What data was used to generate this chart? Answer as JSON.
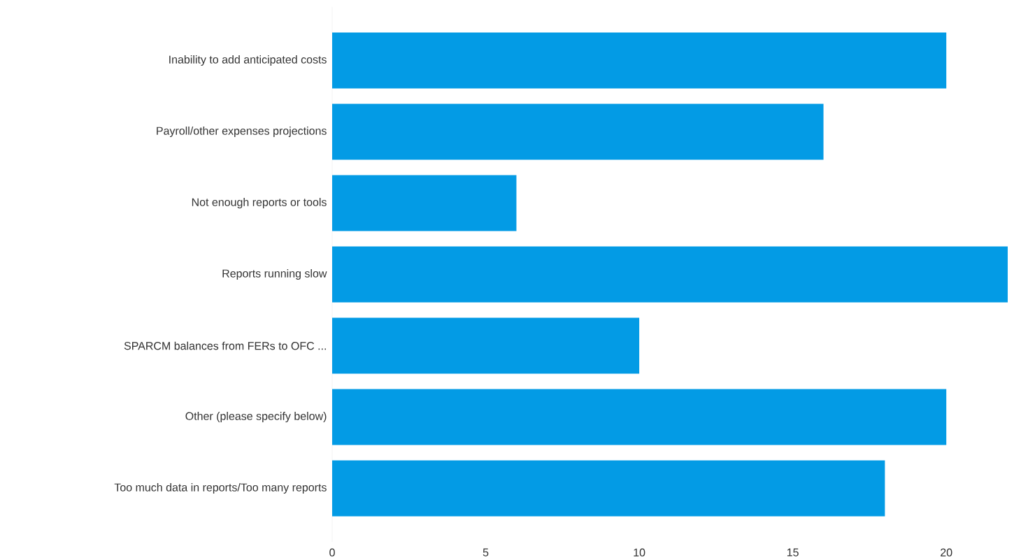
{
  "chart_data": {
    "type": "bar",
    "orientation": "horizontal",
    "categories": [
      "Inability to add anticipated costs",
      "Payroll/other expenses projections",
      "Not enough reports or tools",
      "Reports running slow",
      "SPARCM balances from FERs to OFC ...",
      "Other (please specify below)",
      "Too much data in reports/Too many reports"
    ],
    "values": [
      20,
      16,
      6,
      22,
      10,
      20,
      18
    ],
    "color": "#039be5",
    "xlim": [
      0,
      22
    ],
    "xticks": [
      0,
      5,
      10,
      15,
      20
    ]
  }
}
